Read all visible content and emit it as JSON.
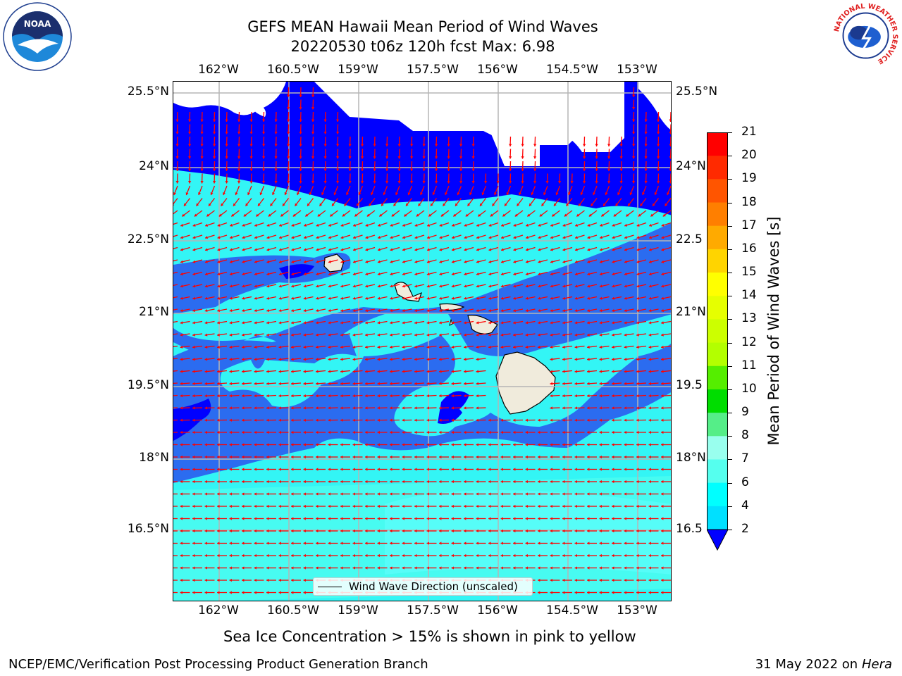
{
  "title": {
    "line1": "GEFS MEAN Hawaii Mean Period of Wind Waves",
    "line2": "20220530 t06z 120h fcst   Max: 6.98"
  },
  "logos": {
    "left": "NOAA",
    "left_ring": "NATIONAL OCEANIC AND ATMOSPHERIC ADMINISTRATION · U.S. DEPARTMENT OF COMMERCE",
    "right_ring": "NATIONAL WEATHER SERVICE"
  },
  "axes": {
    "lon_labels": [
      "162°W",
      "160.5°W",
      "159°W",
      "157.5°W",
      "156°W",
      "154.5°W",
      "153°W"
    ],
    "lat_labels": [
      "25.5°N",
      "24°N",
      "22.5°N",
      "21°N",
      "19.5°N",
      "18°N",
      "16.5°N"
    ],
    "lat_labels_right": [
      "25.5°N",
      "24°N",
      "22.5",
      "21°N",
      "19.5",
      "18°N",
      "16.5"
    ]
  },
  "legend": {
    "label": "Wind Wave Direction (unscaled)"
  },
  "colorbar": {
    "label": "Mean Period of Wind Waves [s]",
    "ticks": [
      "21",
      "20",
      "19",
      "18",
      "17",
      "16",
      "15",
      "14",
      "13",
      "12",
      "11",
      "10",
      "9",
      "8",
      "7",
      "6",
      "4",
      "2"
    ],
    "colors": [
      "#ff0000",
      "#ff2a00",
      "#ff5500",
      "#ff7f00",
      "#ffaa00",
      "#ffd400",
      "#ffff00",
      "#e6ff00",
      "#ccff00",
      "#b3ff00",
      "#55ee00",
      "#00dd00",
      "#55ee88",
      "#99ffee",
      "#55ffee",
      "#00ffff",
      "#00e0ff",
      "#0080ff"
    ],
    "extend_color": "#0000ff"
  },
  "colors": {
    "deep_blue": "#0000ff",
    "mid_blue": "#2b6cf0",
    "cyan": "#33f5f5",
    "light_cyan": "#66ffff",
    "land": "#f0ebdc",
    "arrow": "#ff0000"
  },
  "footer": {
    "sea_ice": "Sea Ice Concentration > 15% is shown in pink to yellow",
    "branch": "NCEP/EMC/Verification Post Processing Product Generation Branch",
    "date": "31 May 2022 on",
    "host": "Hera"
  }
}
